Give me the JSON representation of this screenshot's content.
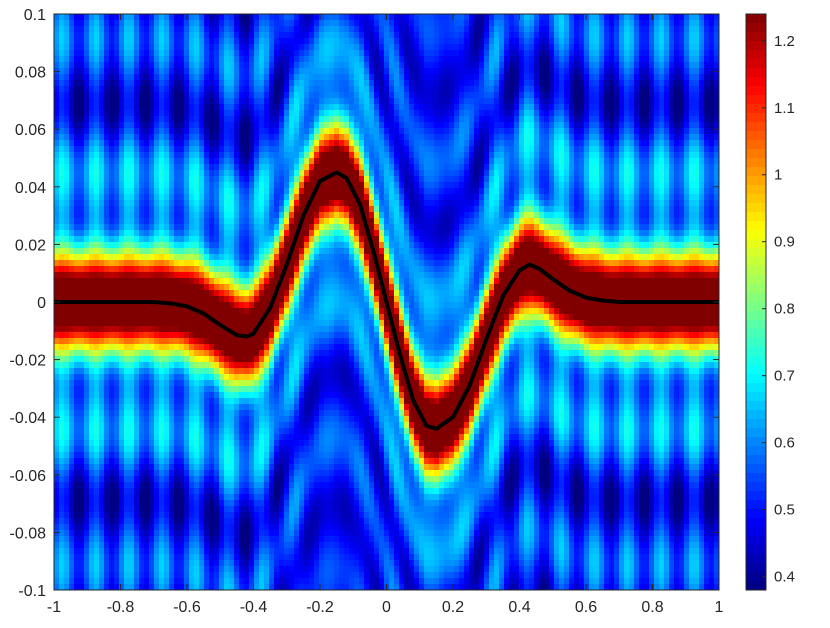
{
  "chart_data": {
    "type": "heatmap",
    "title": "",
    "xlabel": "",
    "ylabel": "",
    "xlim": [
      -1,
      1
    ],
    "ylim": [
      -0.1,
      0.1
    ],
    "colormap": "jet",
    "color_limits": [
      0.38,
      1.24
    ],
    "x_ticks": [
      {
        "value": -1,
        "label": "-1"
      },
      {
        "value": -0.8,
        "label": "-0.8"
      },
      {
        "value": -0.6,
        "label": "-0.6"
      },
      {
        "value": -0.4,
        "label": "-0.4"
      },
      {
        "value": -0.2,
        "label": "-0.2"
      },
      {
        "value": 0,
        "label": "0"
      },
      {
        "value": 0.2,
        "label": "0.2"
      },
      {
        "value": 0.4,
        "label": "0.4"
      },
      {
        "value": 0.6,
        "label": "0.6"
      },
      {
        "value": 0.8,
        "label": "0.8"
      },
      {
        "value": 1,
        "label": "1"
      }
    ],
    "y_ticks": [
      {
        "value": 0.1,
        "label": "0.1"
      },
      {
        "value": 0.08,
        "label": "0.08"
      },
      {
        "value": 0.06,
        "label": "0.06"
      },
      {
        "value": 0.04,
        "label": "0.04"
      },
      {
        "value": 0.02,
        "label": "0.02"
      },
      {
        "value": 0,
        "label": "0"
      },
      {
        "value": -0.02,
        "label": "-0.02"
      },
      {
        "value": -0.04,
        "label": "-0.04"
      },
      {
        "value": -0.06,
        "label": "-0.06"
      },
      {
        "value": -0.08,
        "label": "-0.08"
      },
      {
        "value": -0.1,
        "label": "-0.1"
      }
    ],
    "colorbar_ticks": [
      {
        "value": 0.4,
        "label": "0.4"
      },
      {
        "value": 0.5,
        "label": "0.5"
      },
      {
        "value": 0.6,
        "label": "0.6"
      },
      {
        "value": 0.7,
        "label": "0.7"
      },
      {
        "value": 0.8,
        "label": "0.8"
      },
      {
        "value": 0.9,
        "label": "0.9"
      },
      {
        "value": 1,
        "label": "1"
      },
      {
        "value": 1.1,
        "label": "1.1"
      },
      {
        "value": 1.2,
        "label": "1.2"
      }
    ],
    "field_description_values": {
      "ridge_max": 1.2,
      "background_min": 0.4,
      "oscillation_period_x": 0.1
    },
    "curve": {
      "color": "#000000",
      "points": [
        [
          -1.0,
          0.0
        ],
        [
          -0.9,
          0.0
        ],
        [
          -0.8,
          0.0
        ],
        [
          -0.7,
          0.0
        ],
        [
          -0.65,
          -0.0005
        ],
        [
          -0.6,
          -0.0015
        ],
        [
          -0.55,
          -0.004
        ],
        [
          -0.5,
          -0.008
        ],
        [
          -0.45,
          -0.0115
        ],
        [
          -0.42,
          -0.012
        ],
        [
          -0.4,
          -0.011
        ],
        [
          -0.35,
          -0.002
        ],
        [
          -0.3,
          0.013
        ],
        [
          -0.25,
          0.03
        ],
        [
          -0.2,
          0.042
        ],
        [
          -0.15,
          0.045
        ],
        [
          -0.12,
          0.043
        ],
        [
          -0.08,
          0.034
        ],
        [
          -0.04,
          0.018
        ],
        [
          0.0,
          0.0
        ],
        [
          0.04,
          -0.018
        ],
        [
          0.08,
          -0.034
        ],
        [
          0.12,
          -0.043
        ],
        [
          0.15,
          -0.044
        ],
        [
          0.2,
          -0.04
        ],
        [
          0.25,
          -0.029
        ],
        [
          0.3,
          -0.013
        ],
        [
          0.35,
          0.002
        ],
        [
          0.4,
          0.011
        ],
        [
          0.43,
          0.013
        ],
        [
          0.46,
          0.0115
        ],
        [
          0.5,
          0.008
        ],
        [
          0.55,
          0.004
        ],
        [
          0.6,
          0.0015
        ],
        [
          0.65,
          0.0005
        ],
        [
          0.7,
          0.0
        ],
        [
          0.8,
          0.0
        ],
        [
          0.9,
          0.0
        ],
        [
          1.0,
          0.0
        ]
      ]
    }
  }
}
